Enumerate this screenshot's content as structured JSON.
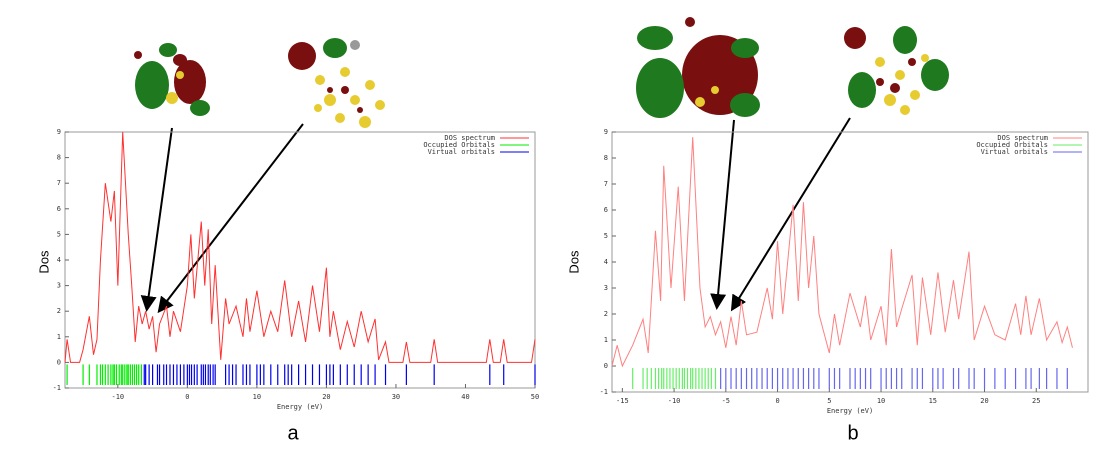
{
  "chart_data": [
    {
      "type": "line",
      "x_label": "Energy (eV)",
      "y_label": "Dos",
      "panel_label": "a",
      "xlim": [
        -17.6,
        50
      ],
      "ylim": [
        -1,
        9
      ],
      "xticks": [
        -10,
        0,
        10,
        20,
        30,
        40,
        50
      ],
      "yticks": [
        -1,
        0,
        1,
        2,
        3,
        4,
        5,
        6,
        7,
        8,
        9
      ],
      "series": [
        {
          "name": "DOS spectrum",
          "color": "#ff3030",
          "x": [
            -17.6,
            -17.3,
            -16.8,
            -15.5,
            -15,
            -14.1,
            -13.5,
            -13,
            -12.5,
            -11.8,
            -11,
            -10.5,
            -10,
            -9.3,
            -8.5,
            -8,
            -7.5,
            -7,
            -6.5,
            -6,
            -5.5,
            -5,
            -4.5,
            -4,
            -3,
            -2.5,
            -2,
            -1,
            0,
            0.5,
            1,
            2,
            2.5,
            3,
            3.5,
            4,
            4.8,
            5.5,
            6,
            7,
            8,
            8.5,
            9,
            10,
            11,
            12,
            13,
            14,
            15,
            16,
            17,
            18,
            19,
            20,
            20.5,
            21,
            22,
            23,
            24,
            25,
            26,
            27,
            27.5,
            28.5,
            29,
            31,
            31.5,
            32,
            35,
            35.5,
            36,
            43,
            43.5,
            44,
            45,
            45.5,
            46,
            49.5,
            50
          ],
          "values": [
            0,
            0.9,
            0,
            0,
            0.5,
            1.8,
            0.3,
            0.9,
            4.0,
            7.0,
            5.5,
            6.7,
            3.0,
            9.0,
            5.0,
            3.0,
            0.8,
            2.2,
            1.5,
            2.0,
            1.3,
            1.8,
            0.4,
            1.5,
            2.2,
            1.0,
            2.0,
            1.2,
            3.0,
            5.0,
            2.5,
            5.5,
            3.0,
            5.2,
            1.5,
            3.8,
            0.1,
            2.5,
            1.5,
            2.2,
            1.0,
            2.5,
            1.2,
            2.8,
            1.0,
            2.0,
            1.2,
            3.2,
            1.0,
            2.4,
            0.8,
            3.0,
            1.2,
            3.7,
            1.0,
            2.0,
            0.5,
            1.6,
            0.6,
            2.0,
            0.8,
            1.7,
            0.1,
            0.8,
            0,
            0,
            0.8,
            0,
            0,
            0.9,
            0,
            0,
            0.9,
            0,
            0,
            0.9,
            0,
            0,
            0.9
          ]
        },
        {
          "name": "Occupied Orbitals",
          "color": "#00ee00",
          "stick": true,
          "x": [
            -17.3,
            -15,
            -14.1,
            -13,
            -12.5,
            -12.2,
            -11.8,
            -11.4,
            -11,
            -10.7,
            -10.5,
            -10.2,
            -9.8,
            -9.5,
            -9.3,
            -9,
            -8.7,
            -8.5,
            -8.2,
            -7.9,
            -7.6,
            -7.3,
            -7,
            -6.6
          ]
        },
        {
          "name": "Virtual orbitals",
          "color": "#0000ee",
          "stick": true,
          "x": [
            -6.2,
            -6,
            -5.5,
            -5,
            -4.3,
            -4,
            -3.4,
            -3,
            -2.5,
            -2,
            -1.5,
            -1,
            -0.5,
            0,
            0.3,
            0.6,
            1,
            1.4,
            2,
            2.3,
            2.6,
            3,
            3.3,
            3.7,
            4,
            5.5,
            6,
            6.5,
            7,
            8,
            8.5,
            9,
            10,
            10.5,
            11,
            12,
            13,
            14,
            14.5,
            15,
            16,
            17,
            18,
            19,
            20,
            20.5,
            21,
            22,
            23,
            24,
            25,
            26,
            27,
            28.5,
            31.5,
            35.5,
            43.5,
            45.5,
            50
          ]
        }
      ]
    },
    {
      "type": "line",
      "x_label": "Energy (eV)",
      "y_label": "Dos",
      "panel_label": "b",
      "xlim": [
        -16,
        30
      ],
      "ylim": [
        -1,
        9
      ],
      "xticks": [
        -15,
        -10,
        -5,
        0,
        5,
        10,
        15,
        20,
        25
      ],
      "yticks": [
        -1,
        0,
        1,
        2,
        3,
        4,
        5,
        6,
        7,
        8,
        9
      ],
      "series": [
        {
          "name": "DOS spectrum",
          "color": "#ff8080",
          "x": [
            -16,
            -15.5,
            -15,
            -14,
            -13,
            -12.5,
            -11.8,
            -11.3,
            -11,
            -10.3,
            -9.6,
            -9,
            -8.2,
            -7.5,
            -7,
            -6.5,
            -6,
            -5.5,
            -5,
            -4.5,
            -4,
            -3.5,
            -3,
            -2,
            -1,
            -0.5,
            0,
            0.5,
            1.5,
            2,
            2.5,
            3,
            3.5,
            4,
            5,
            5.5,
            6,
            7,
            8,
            8.5,
            9,
            10,
            10.5,
            11,
            11.5,
            12,
            13,
            13.5,
            14,
            14.8,
            15.5,
            16.2,
            17,
            17.5,
            18.5,
            19,
            20,
            21,
            22,
            23,
            23.5,
            24,
            24.5,
            25.3,
            26,
            27,
            27.5,
            28,
            28.5
          ],
          "values": [
            0,
            0.8,
            0,
            0.8,
            1.8,
            0.5,
            5.2,
            2.5,
            7.7,
            3.0,
            6.9,
            2.5,
            8.8,
            3.0,
            1.5,
            1.9,
            1.2,
            1.7,
            0.7,
            1.9,
            0.8,
            2.5,
            1.2,
            1.3,
            3.0,
            1.8,
            4.8,
            2.0,
            6.2,
            2.5,
            6.3,
            3.0,
            5.0,
            2.0,
            0.5,
            2.0,
            0.8,
            2.8,
            1.5,
            2.7,
            1.0,
            2.3,
            0.8,
            4.5,
            1.5,
            2.2,
            3.5,
            0.8,
            3.4,
            1.2,
            3.6,
            1.3,
            3.3,
            1.8,
            4.4,
            1.0,
            2.3,
            1.2,
            1.0,
            2.4,
            1.2,
            2.7,
            1.2,
            2.6,
            1.0,
            1.7,
            0.9,
            1.5,
            0.7
          ]
        },
        {
          "name": "Occupied Orbitals",
          "color": "#66ee66",
          "stick": true,
          "x": [
            -14,
            -13,
            -12.6,
            -12.2,
            -11.8,
            -11.5,
            -11.2,
            -11,
            -10.7,
            -10.4,
            -10.1,
            -9.8,
            -9.5,
            -9.2,
            -9,
            -8.7,
            -8.4,
            -8.2,
            -7.9,
            -7.6,
            -7.3,
            -7,
            -6.7,
            -6.4,
            -6
          ]
        },
        {
          "name": "Virtual orbitals",
          "color": "#6666ee",
          "stick": true,
          "x": [
            -5.5,
            -5,
            -4.5,
            -4,
            -3.5,
            -3,
            -2.5,
            -2,
            -1.5,
            -1,
            -0.5,
            0,
            0.5,
            1,
            1.5,
            2,
            2.5,
            3,
            3.5,
            4,
            5,
            5.5,
            6,
            7,
            7.5,
            8,
            8.5,
            9,
            10,
            10.5,
            11,
            11.5,
            12,
            13,
            13.5,
            14,
            15,
            15.5,
            16,
            17,
            17.5,
            18.5,
            19,
            20,
            21,
            22,
            23,
            24,
            24.5,
            25.3,
            26,
            27,
            28
          ]
        }
      ]
    }
  ]
}
